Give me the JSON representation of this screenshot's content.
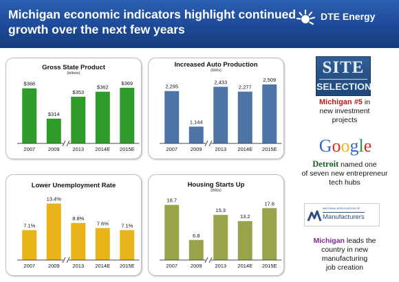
{
  "header": {
    "title": "Michigan economic indicators highlight continued growth over the next few years",
    "logo_text": "DTE Energy"
  },
  "colors": {
    "header_blue": "#1f4d9a",
    "green": "#2f9c2c",
    "blue": "#4f74a8",
    "gold": "#e8b41a",
    "olive": "#9aa34a"
  },
  "chart_data": [
    {
      "type": "bar",
      "title": "Gross State Product",
      "subtitle": "(billons)",
      "categories": [
        "2007",
        "2009",
        "2013",
        "2014E",
        "2015E"
      ],
      "values": [
        368,
        314,
        353,
        362,
        369
      ],
      "labels": [
        "$368",
        "$314",
        "$353",
        "$362",
        "$369"
      ],
      "color": "#2f9c2c",
      "axis_break_between": [
        1,
        2
      ],
      "ylim": [
        270,
        375
      ]
    },
    {
      "type": "bar",
      "title": "Increased Auto Production",
      "subtitle": "(000s)",
      "categories": [
        "2007",
        "2009",
        "2013",
        "2014E",
        "2015E"
      ],
      "values": [
        2295,
        1144,
        2433,
        2277,
        2509
      ],
      "labels": [
        "2,295",
        "1,144",
        "2,433",
        "2,277",
        "2,509"
      ],
      "color": "#4f74a8",
      "axis_break_between": [
        1,
        2
      ],
      "ylim": [
        600,
        2600
      ]
    },
    {
      "type": "bar",
      "title": "Lower Unemployment Rate",
      "subtitle": "",
      "categories": [
        "2007",
        "2009",
        "2013",
        "2014E",
        "2015E"
      ],
      "values": [
        7.1,
        13.4,
        8.8,
        7.6,
        7.1
      ],
      "labels": [
        "7.1%",
        "13.4%",
        "8.8%",
        "7.6%",
        "7.1%"
      ],
      "color": "#e8b41a",
      "axis_break_between": [
        1,
        2
      ],
      "ylim": [
        0,
        14
      ]
    },
    {
      "type": "bar",
      "title": "Housing Starts Up",
      "subtitle": "(000s)",
      "categories": [
        "2007",
        "2009",
        "2013",
        "2014E",
        "2015E"
      ],
      "values": [
        18.7,
        6.8,
        15.3,
        13.2,
        17.6
      ],
      "labels": [
        "18.7",
        "6.8",
        "15.3",
        "13.2",
        "17.6"
      ],
      "color": "#9aa34a",
      "axis_break_between": [
        1,
        2
      ],
      "ylim": [
        0,
        20
      ]
    }
  ],
  "right": {
    "site_selection_top": "SITE",
    "site_selection_bottom": "SELECTION",
    "fact1_highlight": "Michigan #5",
    "fact1_rest_a": " in",
    "fact1_rest_b": "new investment",
    "fact1_rest_c": "projects",
    "google_letters": [
      "G",
      "o",
      "o",
      "g",
      "l",
      "e"
    ],
    "google_colors": [
      "#3366cc",
      "#d62d20",
      "#f2b50f",
      "#3366cc",
      "#1e9e48",
      "#d62d20"
    ],
    "detroit": "Detroit",
    "fact2_rest_a": " named one",
    "fact2_rest_b": "of seven new entrepreneur",
    "fact2_rest_c": "tech hubs",
    "nam_small": "NATIONAL ASSOCIATION OF",
    "nam_big": "Manufacturers",
    "fact3_highlight": "Michigan",
    "fact3_rest_a": " leads the",
    "fact3_rest_b": "country in new",
    "fact3_rest_c": "manufacturing",
    "fact3_rest_d": "job creation"
  }
}
